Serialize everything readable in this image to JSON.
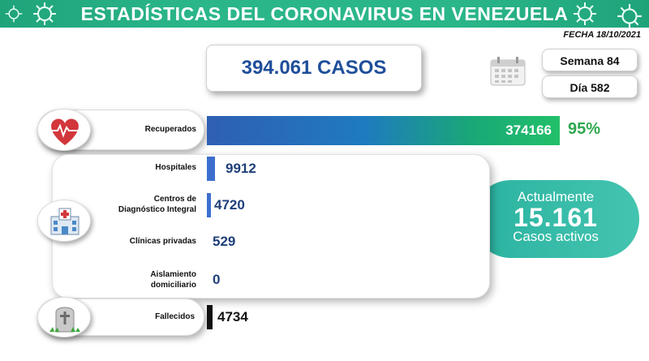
{
  "header": {
    "title": "ESTADÍSTICAS DEL CORONAVIRUS EN VENEZUELA"
  },
  "fecha": "FECHA 18/10/2021",
  "casos": "394.061 CASOS",
  "semana": "Semana 84",
  "dia": "Día 582",
  "recuperados": {
    "label": "Recuperados",
    "value": "374166",
    "pct": "95%"
  },
  "hospitales": {
    "label": "Hospitales",
    "value": "9912"
  },
  "cdi": {
    "label_line1": "Centros de",
    "label_line2": "Diagnóstico Integral",
    "value": "4720"
  },
  "clinicas": {
    "label": "Clínicas privadas",
    "value": "529"
  },
  "aislamiento": {
    "label_line1": "Aislamiento",
    "label_line2": "domiciliario",
    "value": "0"
  },
  "fallecidos": {
    "label": "Fallecidos",
    "value": "4734"
  },
  "activos": {
    "line1": "Actualmente",
    "number": "15.161",
    "line2": "Casos activos"
  },
  "colors": {
    "header": "#2bb68a",
    "accent_blue": "#1f4e9a",
    "bar_blue": "#3d6ecf",
    "bubble": "#3bbfab",
    "pct_green": "#2fa84f"
  },
  "icons": [
    "virus-icon",
    "calendar-icon",
    "heart-icon",
    "hospital-icon",
    "tombstone-icon"
  ]
}
